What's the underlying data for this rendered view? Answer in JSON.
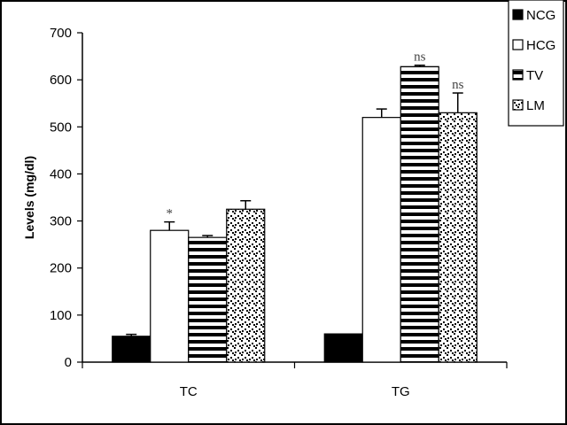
{
  "chart_data": {
    "type": "bar",
    "title": "",
    "xlabel": "",
    "ylabel": "Levels (mg/dl)",
    "ylim": [
      0,
      700
    ],
    "yticks": [
      0,
      100,
      200,
      300,
      400,
      500,
      600,
      700
    ],
    "categories": [
      "TC",
      "TG"
    ],
    "series": [
      {
        "name": "NCG",
        "pattern": "solid-black",
        "values": [
          55,
          60
        ],
        "errors": [
          4,
          0
        ]
      },
      {
        "name": "HCG",
        "pattern": "white",
        "values": [
          280,
          520
        ],
        "errors": [
          18,
          18
        ]
      },
      {
        "name": "TV",
        "pattern": "horizontal-stripes",
        "values": [
          265,
          628
        ],
        "errors": [
          4,
          3
        ]
      },
      {
        "name": "LM",
        "pattern": "dots",
        "values": [
          325,
          530
        ],
        "errors": [
          18,
          42
        ]
      }
    ],
    "annotations": [
      {
        "category": "TC",
        "series": "HCG",
        "text": "*"
      },
      {
        "category": "TG",
        "series": "TV",
        "text": "ns"
      },
      {
        "category": "TG",
        "series": "LM",
        "text": "ns"
      }
    ],
    "legend_position": "top-right",
    "grid": false,
    "colors": {
      "bar_fill": "#000000",
      "background": "#ffffff"
    }
  }
}
